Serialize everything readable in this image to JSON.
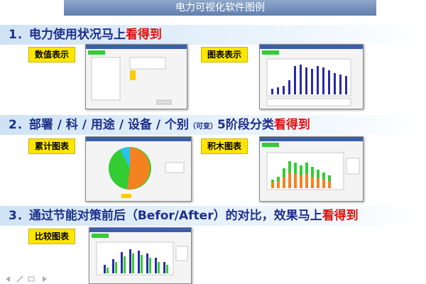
{
  "header": {
    "title": "电力可视化软件图例"
  },
  "sections": [
    {
      "number": "1．",
      "parts": [
        "电力使用状况马上"
      ],
      "highlight": "看得到",
      "panels": [
        {
          "label": "数值表示"
        },
        {
          "label": "图表表示"
        }
      ]
    },
    {
      "number": "2．",
      "parts": [
        "部署 / 科 / 用途 / 设备 / 个别",
        "（可变）",
        "5阶段分类"
      ],
      "highlight": "看得到",
      "panels": [
        {
          "label": "累计图表"
        },
        {
          "label": "积木图表"
        }
      ]
    },
    {
      "number": "3．",
      "parts": [
        "通过节能对策前后（Befor/After）的对比，效果马上"
      ],
      "highlight": "看得到",
      "panels": [
        {
          "label": "比较图表"
        }
      ]
    }
  ]
}
